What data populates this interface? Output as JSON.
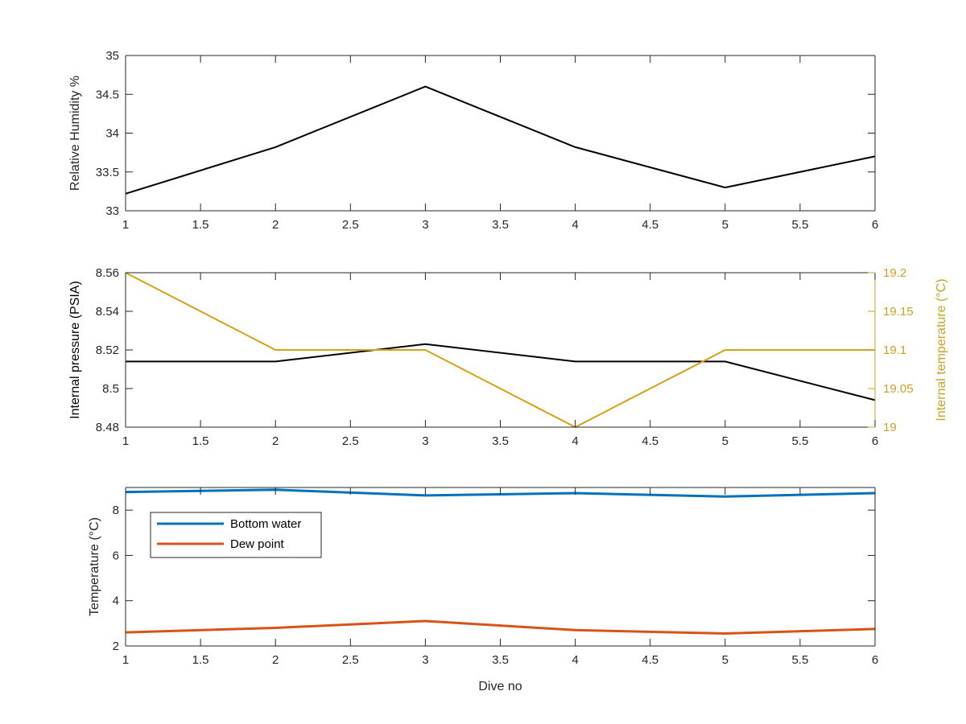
{
  "chart_data": [
    {
      "type": "line",
      "title": "",
      "xlabel": "",
      "ylabel": "Relative Humidity %",
      "xlim": [
        1,
        6
      ],
      "ylim": [
        33,
        35
      ],
      "xticks": [
        1,
        1.5,
        2,
        2.5,
        3,
        3.5,
        4,
        4.5,
        5,
        5.5,
        6
      ],
      "yticks": [
        33,
        33.5,
        34,
        34.5,
        35
      ],
      "x": [
        1,
        2,
        3,
        4,
        5,
        6
      ],
      "series": [
        {
          "values": [
            33.22,
            33.82,
            34.6,
            33.82,
            33.3,
            33.7
          ],
          "color": "#000000"
        }
      ],
      "grid": false
    },
    {
      "type": "line",
      "title": "",
      "xlabel": "",
      "ylabel": "Internal pressure (PSIA)",
      "ylabel_right": "Internal temperature (°C)",
      "xlim": [
        1,
        6
      ],
      "ylim": [
        8.48,
        8.56
      ],
      "ylim_right": [
        19,
        19.2
      ],
      "xticks": [
        1,
        1.5,
        2,
        2.5,
        3,
        3.5,
        4,
        4.5,
        5,
        5.5,
        6
      ],
      "yticks": [
        8.48,
        8.5,
        8.52,
        8.54,
        8.56
      ],
      "yticks_right": [
        19,
        19.05,
        19.1,
        19.15,
        19.2
      ],
      "x": [
        1,
        2,
        3,
        4,
        5,
        6
      ],
      "series": [
        {
          "values": [
            8.514,
            8.514,
            8.523,
            8.514,
            8.514,
            8.494
          ],
          "axis": "left",
          "color": "#000000"
        },
        {
          "values": [
            19.2,
            19.1,
            19.1,
            19.0,
            19.1,
            19.1
          ],
          "axis": "right",
          "color": "#D4A017"
        }
      ],
      "right_axis_color": "#C9A227",
      "grid": false
    },
    {
      "type": "line",
      "title": "",
      "xlabel": "Dive no",
      "ylabel": "Temperature (°C)",
      "xlim": [
        1,
        6
      ],
      "ylim": [
        2,
        9
      ],
      "xticks": [
        1,
        1.5,
        2,
        2.5,
        3,
        3.5,
        4,
        4.5,
        5,
        5.5,
        6
      ],
      "yticks": [
        2,
        4,
        6,
        8
      ],
      "x": [
        1,
        2,
        3,
        4,
        5,
        6
      ],
      "series": [
        {
          "name": "Bottom water",
          "values": [
            8.8,
            8.9,
            8.65,
            8.75,
            8.6,
            8.75
          ],
          "color": "#0072BD"
        },
        {
          "name": "Dew point",
          "values": [
            2.6,
            2.8,
            3.1,
            2.7,
            2.55,
            2.75
          ],
          "color": "#D95319"
        }
      ],
      "legend_position": "top-left",
      "grid": false
    }
  ]
}
